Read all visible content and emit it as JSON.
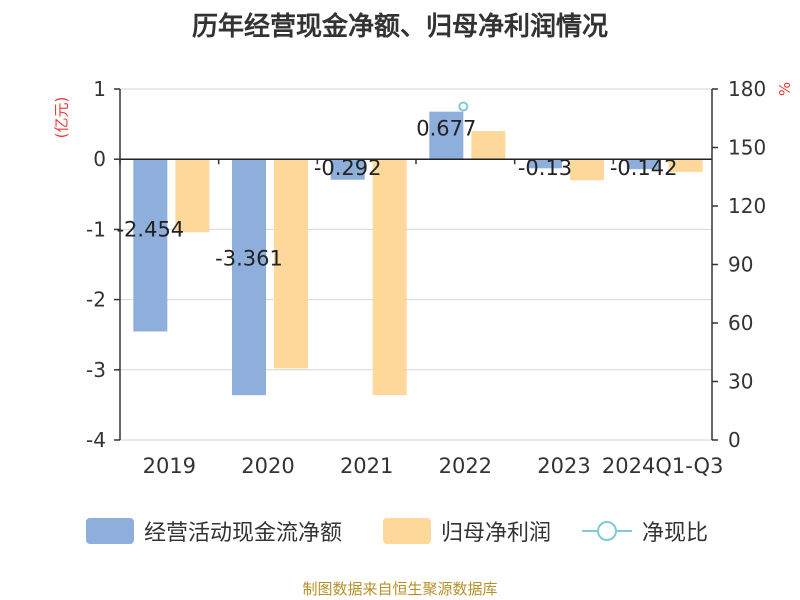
{
  "chart_data": {
    "type": "bar",
    "title": "历年经营现金净额、归母净利润情况",
    "categories": [
      "2019",
      "2020",
      "2021",
      "2022",
      "2023",
      "2024Q1-Q3"
    ],
    "series": [
      {
        "name": "经营活动现金流净额",
        "type": "bar",
        "axis": "left",
        "color": "#8eaedb",
        "values": [
          -2.454,
          -3.361,
          -0.292,
          0.677,
          -0.13,
          -0.142
        ],
        "labels": [
          "-2.454",
          "-3.361",
          "-0.292",
          "0.677",
          "-0.13",
          "-0.142"
        ]
      },
      {
        "name": "归母净利润",
        "type": "bar",
        "axis": "left",
        "color": "#fdd89a",
        "values": [
          -1.04,
          -2.98,
          -3.36,
          0.4,
          -0.3,
          -0.18
        ]
      },
      {
        "name": "净现比",
        "type": "line",
        "axis": "right",
        "color": "#7fcbd6",
        "values": [
          null,
          null,
          null,
          171,
          null,
          null
        ]
      }
    ],
    "y_left": {
      "label": "(亿元)",
      "ticks": [
        "1",
        "0",
        "-1",
        "-2",
        "-3",
        "-4"
      ],
      "range": [
        -4,
        1
      ]
    },
    "y_right": {
      "label": "%",
      "ticks": [
        "180",
        "150",
        "120",
        "90",
        "60",
        "30",
        "0"
      ],
      "range": [
        0,
        180
      ]
    },
    "grid": true,
    "legend_position": "bottom"
  },
  "source": "制图数据来自恒生聚源数据库"
}
